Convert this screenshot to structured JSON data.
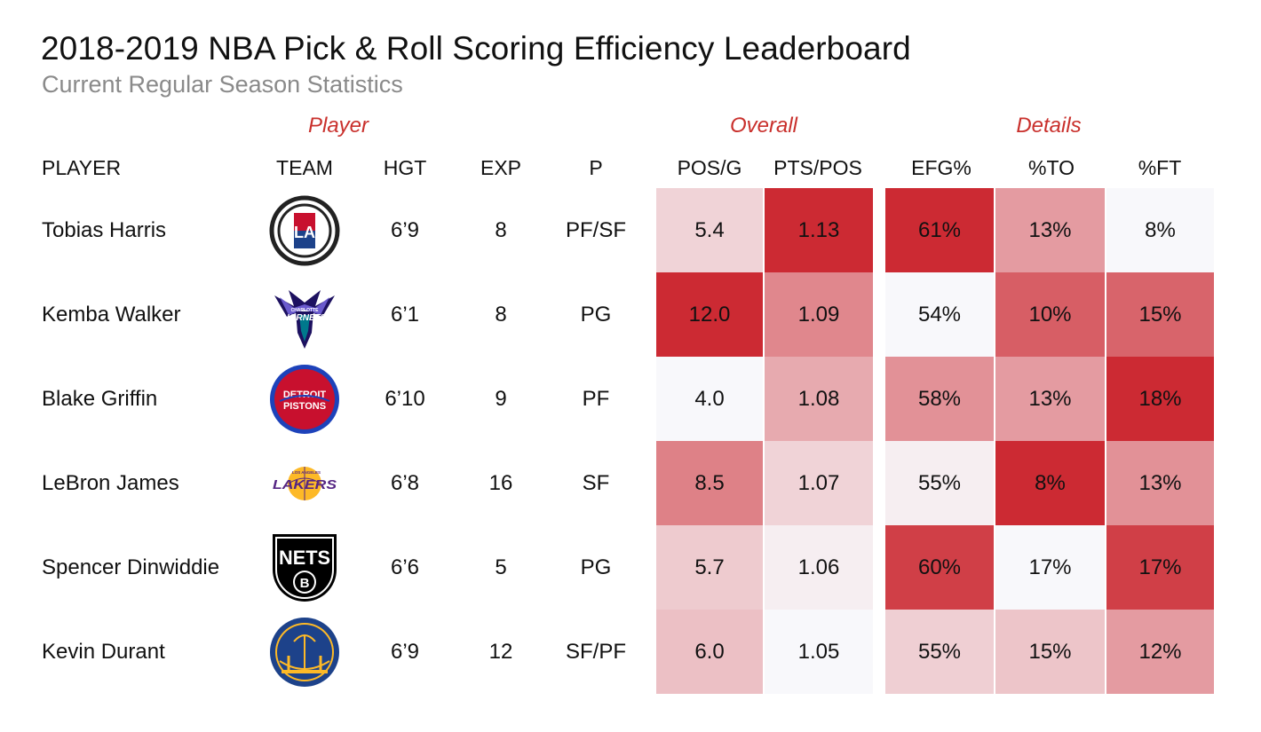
{
  "title": "2018-2019 NBA Pick & Roll Scoring Efficiency Leaderboard",
  "subtitle": "Current Regular Season Statistics",
  "groups": {
    "player": "Player",
    "overall": "Overall",
    "details": "Details"
  },
  "columns": {
    "player": "PLAYER",
    "team": "TEAM",
    "hgt": "HGT",
    "exp": "EXP",
    "pos": "P",
    "posg": "POS/G",
    "ptspos": "PTS/POS",
    "efg": "EFG%",
    "to": "%TO",
    "ft": "%FT"
  },
  "colors": {
    "heat_high": "#cc2a33",
    "heat_low": "#ffffff",
    "group_label": "#c9302c"
  },
  "team_logos": {
    "clippers": {
      "icon": "clippers-logo",
      "text": "LA"
    },
    "hornets": {
      "icon": "hornets-logo",
      "text": "HORNETS",
      "small_text": "CHARLOTTE"
    },
    "pistons": {
      "icon": "pistons-logo",
      "text": "DETROIT",
      "text2": "PISTONS"
    },
    "lakers": {
      "icon": "lakers-logo",
      "text": "LAKERS",
      "small_text": "LOS ANGELES"
    },
    "nets": {
      "icon": "nets-logo",
      "text": "NETS",
      "letter": "B"
    },
    "warriors": {
      "icon": "warriors-logo"
    }
  },
  "chart_data": {
    "type": "table",
    "title": "2018-2019 NBA Pick & Roll Scoring Efficiency Leaderboard",
    "subtitle": "Current Regular Season Statistics",
    "column_groups": [
      "Player",
      "Overall",
      "Details"
    ],
    "columns": [
      "PLAYER",
      "TEAM",
      "HGT",
      "EXP",
      "P",
      "POS/G",
      "PTS/POS",
      "EFG%",
      "%TO",
      "%FT"
    ],
    "rows": [
      {
        "player": "Tobias Harris",
        "team": "clippers",
        "hgt": "6’9",
        "exp": "8",
        "pos": "PF/SF",
        "posg": "5.4",
        "ptspos": "1.13",
        "efg": "61%",
        "to": "13%",
        "ft": "8%"
      },
      {
        "player": "Kemba Walker",
        "team": "hornets",
        "hgt": "6’1",
        "exp": "8",
        "pos": "PG",
        "posg": "12.0",
        "ptspos": "1.09",
        "efg": "54%",
        "to": "10%",
        "ft": "15%"
      },
      {
        "player": "Blake Griffin",
        "team": "pistons",
        "hgt": "6’10",
        "exp": "9",
        "pos": "PF",
        "posg": "4.0",
        "ptspos": "1.08",
        "efg": "58%",
        "to": "13%",
        "ft": "18%"
      },
      {
        "player": "LeBron James",
        "team": "lakers",
        "hgt": "6’8",
        "exp": "16",
        "pos": "SF",
        "posg": "8.5",
        "ptspos": "1.07",
        "efg": "55%",
        "to": "8%",
        "ft": "13%"
      },
      {
        "player": "Spencer Dinwiddie",
        "team": "nets",
        "hgt": "6’6",
        "exp": "5",
        "pos": "PG",
        "posg": "5.7",
        "ptspos": "1.06",
        "efg": "60%",
        "to": "17%",
        "ft": "17%"
      },
      {
        "player": "Kevin Durant",
        "team": "warriors",
        "hgt": "6’9",
        "exp": "12",
        "pos": "SF/PF",
        "posg": "6.0",
        "ptspos": "1.05",
        "efg": "55%",
        "to": "15%",
        "ft": "12%"
      }
    ],
    "heat_intensity": {
      "posg": [
        0.18,
        1.0,
        0.0,
        0.58,
        0.22,
        0.27
      ],
      "ptspos": [
        1.0,
        0.55,
        0.38,
        0.18,
        0.05,
        0.0
      ],
      "efg": [
        1.0,
        0.0,
        0.5,
        0.05,
        0.9,
        0.2
      ],
      "to": [
        0.45,
        0.75,
        0.45,
        1.0,
        0.0,
        0.25
      ],
      "ft": [
        0.0,
        0.72,
        1.0,
        0.5,
        0.9,
        0.45
      ]
    }
  }
}
